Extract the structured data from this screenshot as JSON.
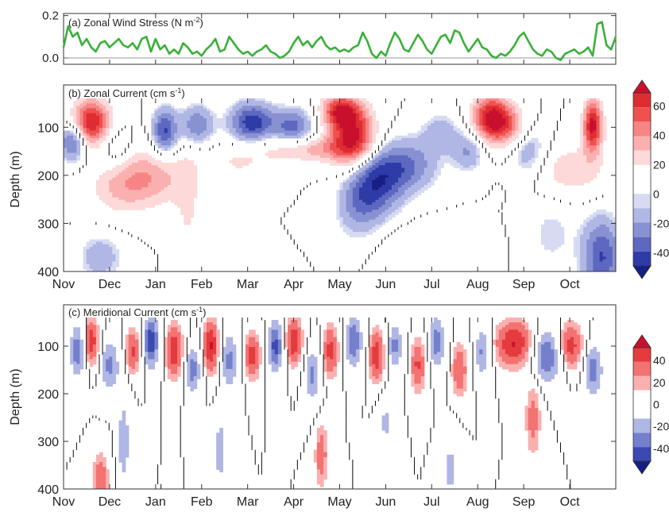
{
  "chart_data": [
    {
      "type": "line",
      "title": "(a) Zonal Wind Stress (N m-2)",
      "title_main": "(a) Zonal Wind Stress (",
      "unit_base": "N m",
      "unit_sup": "-2",
      "title_close": ")",
      "ylim": [
        -0.03,
        0.21
      ],
      "yticks": [
        "0.0",
        "0.2"
      ],
      "ytick_values": [
        0.0,
        0.2
      ],
      "xlim": [
        0,
        12
      ],
      "color": "#3ab03a",
      "series": [
        {
          "x": [
            0.0,
            0.1,
            0.2,
            0.3,
            0.4,
            0.5,
            0.6,
            0.7,
            0.8,
            0.9,
            1.0,
            1.1,
            1.2,
            1.3,
            1.4,
            1.5,
            1.6,
            1.7,
            1.8,
            1.9,
            2.0,
            2.1,
            2.2,
            2.3,
            2.4,
            2.5,
            2.6,
            2.7,
            2.8,
            2.9,
            3.0,
            3.1,
            3.2,
            3.3,
            3.4,
            3.5,
            3.6,
            3.7,
            3.8,
            3.9,
            4.0,
            4.1,
            4.2,
            4.3,
            4.4,
            4.5,
            4.6,
            4.7,
            4.8,
            4.9,
            5.0,
            5.1,
            5.2,
            5.3,
            5.4,
            5.5,
            5.6,
            5.7,
            5.8,
            5.9,
            6.0,
            6.1,
            6.2,
            6.3,
            6.4,
            6.5,
            6.6,
            6.7,
            6.8,
            6.9,
            7.0,
            7.1,
            7.2,
            7.3,
            7.4,
            7.5,
            7.6,
            7.7,
            7.8,
            7.9,
            8.0,
            8.1,
            8.2,
            8.3,
            8.4,
            8.5,
            8.6,
            8.7,
            8.8,
            8.9,
            9.0,
            9.1,
            9.2,
            9.3,
            9.4,
            9.5,
            9.6,
            9.7,
            9.8,
            9.9,
            10.0,
            10.1,
            10.2,
            10.3,
            10.4,
            10.5,
            10.6,
            10.7,
            10.8,
            10.9,
            11.0,
            11.1,
            11.2,
            11.3,
            11.4,
            11.5,
            11.6,
            11.7,
            11.8,
            11.9,
            12.0
          ],
          "values": [
            0.05,
            0.15,
            0.1,
            0.12,
            0.06,
            0.09,
            0.05,
            0.03,
            0.07,
            0.08,
            0.05,
            0.07,
            0.09,
            0.06,
            0.05,
            0.07,
            0.04,
            0.09,
            0.1,
            0.03,
            0.09,
            0.04,
            0.06,
            0.02,
            0.04,
            0.02,
            0.07,
            0.05,
            0.02,
            0.03,
            0.01,
            0.04,
            0.06,
            0.09,
            0.03,
            0.04,
            0.1,
            0.07,
            0.04,
            0.02,
            0.03,
            0.01,
            0.03,
            0.04,
            0.06,
            0.03,
            0.02,
            0.0,
            0.01,
            0.03,
            0.07,
            0.1,
            0.06,
            0.08,
            0.05,
            0.08,
            0.1,
            0.06,
            0.04,
            0.05,
            0.03,
            0.04,
            0.03,
            0.05,
            0.06,
            0.12,
            0.08,
            0.02,
            0.0,
            0.03,
            0.01,
            0.07,
            0.12,
            0.09,
            0.04,
            0.03,
            0.07,
            0.11,
            0.08,
            0.04,
            0.02,
            0.06,
            0.1,
            0.11,
            0.07,
            0.13,
            0.12,
            0.07,
            0.03,
            0.06,
            0.09,
            0.05,
            0.04,
            0.01,
            0.0,
            0.02,
            0.01,
            0.03,
            0.06,
            0.1,
            0.12,
            0.08,
            0.04,
            0.02,
            0.01,
            0.04,
            0.03,
            0.0,
            -0.01,
            0.02,
            0.03,
            0.04,
            0.02,
            0.03,
            0.05,
            0.01,
            0.16,
            0.17,
            0.06,
            0.04,
            0.1
          ]
        }
      ]
    },
    {
      "type": "heatmap",
      "title": "(b) Zonal Current (cm s-1)",
      "title_main": "(b) Zonal Current (",
      "unit_base": "cm s",
      "unit_sup": "-1",
      "title_close": ")",
      "ylabel": "Depth (m)",
      "ylim": [
        400,
        40
      ],
      "yticks": [
        "100",
        "200",
        "300",
        "400"
      ],
      "ytick_values": [
        100,
        200,
        300,
        400
      ],
      "xlim": [
        0,
        12
      ],
      "color_levels": [
        -50,
        -40,
        -30,
        -20,
        -10,
        0,
        10,
        20,
        30,
        40,
        50,
        60,
        70
      ],
      "colorbar_labels": [
        "60",
        "40",
        "20",
        "0",
        "-20",
        "-40"
      ],
      "colorbar_label_values": [
        60,
        40,
        20,
        0,
        -20,
        -40
      ],
      "colorbar_colors_top_to_bottom": [
        "#c8102e",
        "#de2d32",
        "#ef5050",
        "#f78585",
        "#fbb0b0",
        "#fdd9d9",
        "#ffffff",
        "#ffffff",
        "#d7dbf2",
        "#b1b7e4",
        "#8891d2",
        "#5d68c0",
        "#2f3ba7",
        "#161f86"
      ],
      "features": [
        {
          "x": 0.6,
          "depth": 90,
          "value": 62,
          "sx": 0.3,
          "sd": 35
        },
        {
          "x": 0.2,
          "depth": 130,
          "value": -42,
          "sx": 0.2,
          "sd": 28
        },
        {
          "x": 1.1,
          "depth": 140,
          "value": -18,
          "sx": 0.25,
          "sd": 30
        },
        {
          "x": 2.2,
          "depth": 110,
          "value": -45,
          "sx": 0.2,
          "sd": 35
        },
        {
          "x": 2.9,
          "depth": 95,
          "value": -32,
          "sx": 0.25,
          "sd": 30
        },
        {
          "x": 4.1,
          "depth": 90,
          "value": -48,
          "sx": 0.35,
          "sd": 30
        },
        {
          "x": 5.0,
          "depth": 100,
          "value": -36,
          "sx": 0.3,
          "sd": 28
        },
        {
          "x": 1.9,
          "depth": 200,
          "value": 28,
          "sx": 0.6,
          "sd": 45
        },
        {
          "x": 1.2,
          "depth": 230,
          "value": 18,
          "sx": 0.5,
          "sd": 40
        },
        {
          "x": 2.7,
          "depth": 280,
          "value": 14,
          "sx": 0.2,
          "sd": 90
        },
        {
          "x": 3.8,
          "depth": 175,
          "value": 14,
          "sx": 0.5,
          "sd": 25
        },
        {
          "x": 5.3,
          "depth": 145,
          "value": 28,
          "sx": 0.8,
          "sd": 20
        },
        {
          "x": 6.3,
          "depth": 120,
          "value": 62,
          "sx": 0.35,
          "sd": 45
        },
        {
          "x": 6.0,
          "depth": 65,
          "value": 48,
          "sx": 0.3,
          "sd": 25
        },
        {
          "x": 6.8,
          "depth": 210,
          "value": -42,
          "sx": 0.4,
          "sd": 50
        },
        {
          "x": 7.5,
          "depth": 180,
          "value": -30,
          "sx": 0.45,
          "sd": 40
        },
        {
          "x": 6.4,
          "depth": 265,
          "value": -22,
          "sx": 0.35,
          "sd": 50
        },
        {
          "x": 8.2,
          "depth": 110,
          "value": -18,
          "sx": 0.3,
          "sd": 30
        },
        {
          "x": 7.9,
          "depth": 355,
          "value": 14,
          "sx": 0.7,
          "sd": 35
        },
        {
          "x": 8.8,
          "depth": 150,
          "value": -24,
          "sx": 0.25,
          "sd": 30
        },
        {
          "x": 9.3,
          "depth": 80,
          "value": 62,
          "sx": 0.3,
          "sd": 35
        },
        {
          "x": 9.7,
          "depth": 100,
          "value": 28,
          "sx": 0.3,
          "sd": 30
        },
        {
          "x": 10.1,
          "depth": 150,
          "value": -24,
          "sx": 0.3,
          "sd": 40
        },
        {
          "x": 11.0,
          "depth": 190,
          "value": 22,
          "sx": 0.6,
          "sd": 40
        },
        {
          "x": 11.5,
          "depth": 95,
          "value": 64,
          "sx": 0.15,
          "sd": 40
        },
        {
          "x": 11.7,
          "depth": 370,
          "value": -42,
          "sx": 0.3,
          "sd": 60
        },
        {
          "x": 0.8,
          "depth": 370,
          "value": -20,
          "sx": 0.35,
          "sd": 35
        },
        {
          "x": 10.6,
          "depth": 320,
          "value": -12,
          "sx": 0.4,
          "sd": 60
        }
      ]
    },
    {
      "type": "heatmap",
      "title": "(c) Meridional Current (cm s-1)",
      "title_main": "(c) Meridional Current (",
      "unit_base": "cm s",
      "unit_sup": "-1",
      "title_close": ")",
      "ylabel": "Depth (m)",
      "ylim": [
        400,
        40
      ],
      "yticks": [
        "100",
        "200",
        "300",
        "400"
      ],
      "ytick_values": [
        100,
        200,
        300,
        400
      ],
      "xlim": [
        0,
        12
      ],
      "color_levels": [
        -50,
        -40,
        -30,
        -20,
        -10,
        0,
        10,
        20,
        30,
        40,
        50
      ],
      "colorbar_labels": [
        "40",
        "20",
        "0",
        "-20",
        "-40"
      ],
      "colorbar_label_values": [
        40,
        20,
        0,
        -20,
        -40
      ],
      "colorbar_colors_top_to_bottom": [
        "#c8102e",
        "#e43b3e",
        "#f37272",
        "#fbb0b0",
        "#ffffff",
        "#ffffff",
        "#b1b7e4",
        "#7580cc",
        "#3d49b2",
        "#161f86"
      ],
      "features": [
        {
          "x": 0.3,
          "depth": 110,
          "value": -36,
          "sx": 0.12,
          "sd": 40
        },
        {
          "x": 0.6,
          "depth": 90,
          "value": 36,
          "sx": 0.12,
          "sd": 35
        },
        {
          "x": 1.0,
          "depth": 140,
          "value": -30,
          "sx": 0.15,
          "sd": 40
        },
        {
          "x": 1.5,
          "depth": 110,
          "value": 30,
          "sx": 0.12,
          "sd": 35
        },
        {
          "x": 1.9,
          "depth": 90,
          "value": -46,
          "sx": 0.12,
          "sd": 40
        },
        {
          "x": 2.4,
          "depth": 110,
          "value": 38,
          "sx": 0.13,
          "sd": 40
        },
        {
          "x": 2.8,
          "depth": 150,
          "value": -34,
          "sx": 0.12,
          "sd": 35
        },
        {
          "x": 3.2,
          "depth": 100,
          "value": 40,
          "sx": 0.12,
          "sd": 40
        },
        {
          "x": 3.6,
          "depth": 130,
          "value": -30,
          "sx": 0.13,
          "sd": 45
        },
        {
          "x": 4.1,
          "depth": 120,
          "value": 34,
          "sx": 0.12,
          "sd": 35
        },
        {
          "x": 4.6,
          "depth": 100,
          "value": -42,
          "sx": 0.12,
          "sd": 40
        },
        {
          "x": 5.0,
          "depth": 90,
          "value": 38,
          "sx": 0.13,
          "sd": 35
        },
        {
          "x": 5.4,
          "depth": 160,
          "value": -30,
          "sx": 0.12,
          "sd": 40
        },
        {
          "x": 5.8,
          "depth": 110,
          "value": 32,
          "sx": 0.12,
          "sd": 40
        },
        {
          "x": 6.3,
          "depth": 90,
          "value": -38,
          "sx": 0.13,
          "sd": 40
        },
        {
          "x": 6.8,
          "depth": 120,
          "value": 36,
          "sx": 0.12,
          "sd": 40
        },
        {
          "x": 7.2,
          "depth": 100,
          "value": -30,
          "sx": 0.12,
          "sd": 35
        },
        {
          "x": 7.7,
          "depth": 140,
          "value": 30,
          "sx": 0.12,
          "sd": 40
        },
        {
          "x": 8.1,
          "depth": 90,
          "value": -34,
          "sx": 0.13,
          "sd": 40
        },
        {
          "x": 8.6,
          "depth": 150,
          "value": 28,
          "sx": 0.12,
          "sd": 40
        },
        {
          "x": 9.1,
          "depth": 110,
          "value": -30,
          "sx": 0.12,
          "sd": 40
        },
        {
          "x": 9.8,
          "depth": 95,
          "value": 40,
          "sx": 0.3,
          "sd": 35
        },
        {
          "x": 10.5,
          "depth": 120,
          "value": -40,
          "sx": 0.25,
          "sd": 40
        },
        {
          "x": 11.0,
          "depth": 100,
          "value": 36,
          "sx": 0.2,
          "sd": 35
        },
        {
          "x": 11.5,
          "depth": 150,
          "value": -34,
          "sx": 0.15,
          "sd": 40
        },
        {
          "x": 1.3,
          "depth": 300,
          "value": -24,
          "sx": 0.1,
          "sd": 70
        },
        {
          "x": 3.4,
          "depth": 320,
          "value": -22,
          "sx": 0.1,
          "sd": 60
        },
        {
          "x": 5.6,
          "depth": 330,
          "value": 24,
          "sx": 0.1,
          "sd": 50
        },
        {
          "x": 8.4,
          "depth": 360,
          "value": -20,
          "sx": 0.12,
          "sd": 50
        },
        {
          "x": 10.2,
          "depth": 250,
          "value": 22,
          "sx": 0.12,
          "sd": 60
        },
        {
          "x": 0.8,
          "depth": 380,
          "value": 26,
          "sx": 0.12,
          "sd": 40
        },
        {
          "x": 7.0,
          "depth": 260,
          "value": -18,
          "sx": 0.12,
          "sd": 50
        }
      ]
    }
  ],
  "x_axis": {
    "tick_labels": [
      "Nov",
      "Dec",
      "Jan",
      "Feb",
      "Mar",
      "Apr",
      "May",
      "Jun",
      "Jul",
      "Aug",
      "Sep",
      "Oct"
    ],
    "tick_values": [
      0,
      1,
      2,
      3,
      4,
      5,
      6,
      7,
      8,
      9,
      10,
      11
    ]
  }
}
